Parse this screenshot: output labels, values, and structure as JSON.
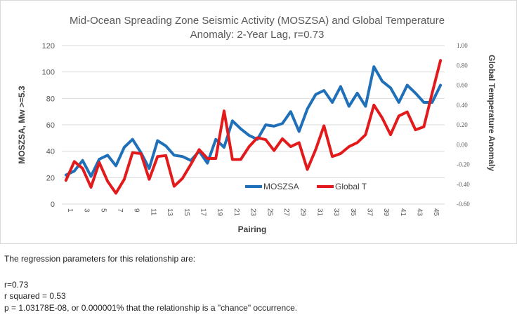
{
  "chart_data": {
    "type": "line",
    "title_line1": "Mid-Ocean Spreading Zone Seismic Activity (MOSZSA) and Global Temperature",
    "title_line2": "Anomaly: 2-Year Lag, r=0.73",
    "xlabel": "Pairing",
    "ylabel_left": "MOSZSA, Mw >=5.3",
    "ylabel_right": "Global Temperature Anomaly",
    "ylim_left": [
      0,
      120
    ],
    "ylim_right": [
      -0.6,
      1.0
    ],
    "left_ticks": [
      "0",
      "20",
      "40",
      "60",
      "80",
      "100",
      "120"
    ],
    "right_ticks": [
      "-0.60",
      "-0.40",
      "-0.20",
      "0.00",
      "0.20",
      "0.40",
      "0.60",
      "0.80",
      "1.00"
    ],
    "x_ticks": [
      "1",
      "3",
      "5",
      "7",
      "9",
      "11",
      "13",
      "15",
      "17",
      "19",
      "21",
      "23",
      "25",
      "27",
      "29",
      "31",
      "33",
      "35",
      "37",
      "39",
      "41",
      "43",
      "45"
    ],
    "x": [
      1,
      2,
      3,
      4,
      5,
      6,
      7,
      8,
      9,
      10,
      11,
      12,
      13,
      14,
      15,
      16,
      17,
      18,
      19,
      20,
      21,
      22,
      23,
      24,
      25,
      26,
      27,
      28,
      29,
      30,
      31,
      32,
      33,
      34,
      35,
      36,
      37,
      38,
      39,
      40,
      41,
      42,
      43,
      44,
      45,
      46
    ],
    "grid": "horizontal",
    "legend_position": "bottom-center",
    "series": [
      {
        "name": "MOSZSA",
        "axis": "left",
        "color": "#1f70b8",
        "values": [
          22,
          25,
          33,
          21,
          34,
          37,
          29,
          43,
          49,
          39,
          27,
          48,
          44,
          37,
          36,
          33,
          40,
          31,
          49,
          43,
          63,
          57,
          52,
          49,
          60,
          59,
          61,
          70,
          55,
          72,
          83,
          86,
          77,
          89,
          74,
          84,
          74,
          104,
          93,
          88,
          77,
          90,
          84,
          77,
          77,
          90
        ]
      },
      {
        "name": "Global T",
        "axis": "right",
        "color": "#e31a1c",
        "values": [
          -0.36,
          -0.17,
          -0.24,
          -0.43,
          -0.18,
          -0.37,
          -0.49,
          -0.35,
          -0.08,
          -0.09,
          -0.35,
          -0.12,
          -0.11,
          -0.42,
          -0.34,
          -0.2,
          -0.05,
          -0.14,
          -0.14,
          0.34,
          -0.15,
          -0.15,
          -0.02,
          0.07,
          0.05,
          -0.06,
          0.06,
          -0.02,
          0.02,
          -0.25,
          -0.05,
          0.19,
          -0.12,
          -0.09,
          -0.02,
          0.02,
          0.1,
          0.4,
          0.27,
          0.1,
          0.29,
          0.33,
          0.15,
          0.18,
          0.52,
          0.85
        ]
      }
    ]
  },
  "notes": {
    "intro": "The regression parameters for this relationship are:",
    "r": "r=0.73",
    "r_squared": "r squared = 0.53",
    "p_value": "p = 1.03178E-08, or 0.000001% that the relationship is a \"chance\" occurrence."
  }
}
